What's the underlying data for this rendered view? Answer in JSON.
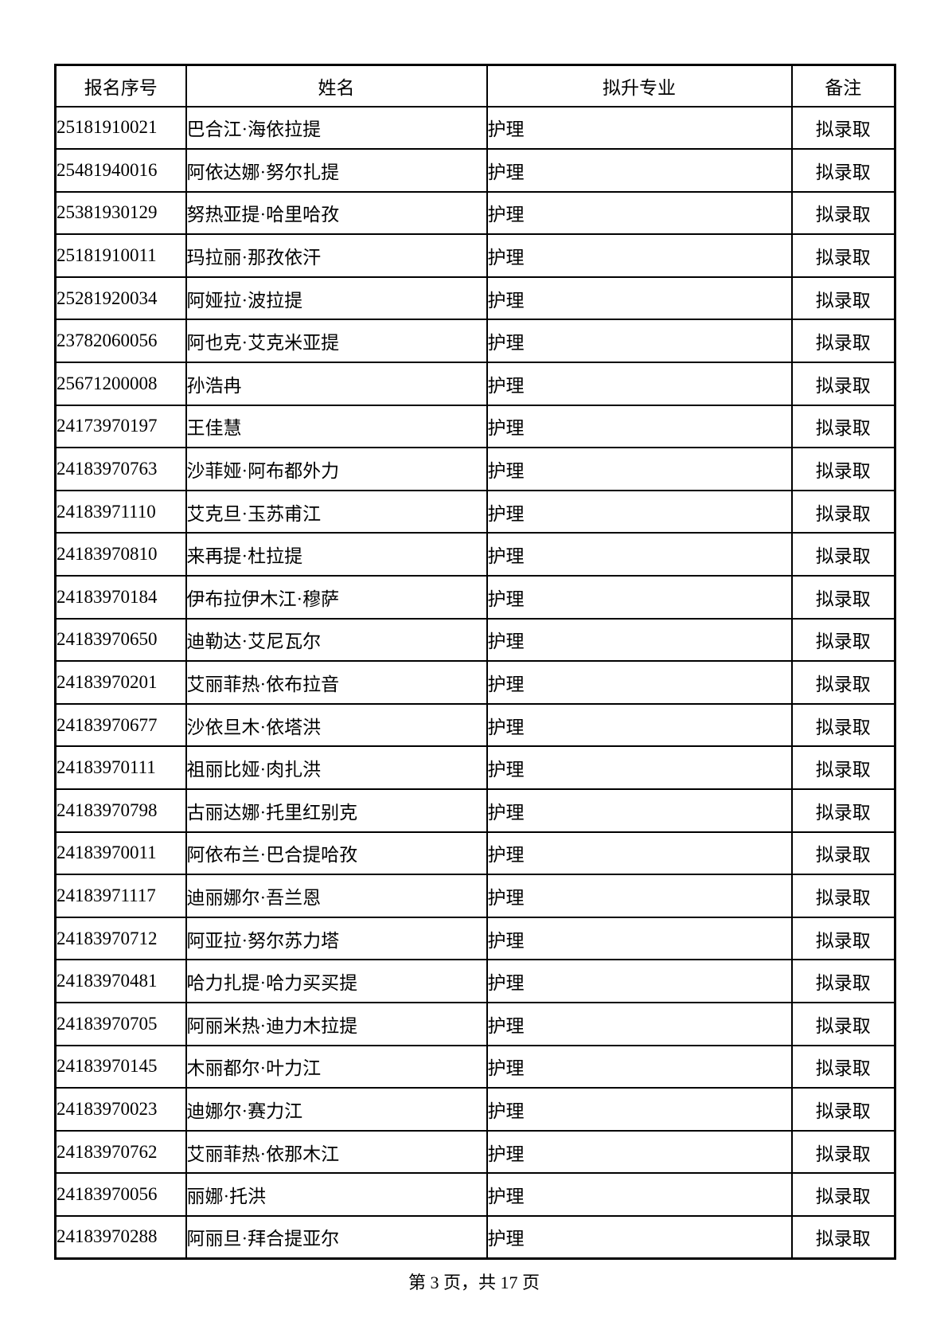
{
  "table": {
    "headers": [
      "报名序号",
      "姓名",
      "拟升专业",
      "备注"
    ],
    "rows": [
      {
        "reg_number": "25181910021",
        "name": "巴合江·海依拉提",
        "major": "护理",
        "note": "拟录取"
      },
      {
        "reg_number": "25481940016",
        "name": "阿依达娜·努尔扎提",
        "major": "护理",
        "note": "拟录取"
      },
      {
        "reg_number": "25381930129",
        "name": "努热亚提·哈里哈孜",
        "major": "护理",
        "note": "拟录取"
      },
      {
        "reg_number": "25181910011",
        "name": "玛拉丽·那孜依汗",
        "major": "护理",
        "note": "拟录取"
      },
      {
        "reg_number": "25281920034",
        "name": "阿娅拉·波拉提",
        "major": "护理",
        "note": "拟录取"
      },
      {
        "reg_number": "23782060056",
        "name": "阿也克·艾克米亚提",
        "major": "护理",
        "note": "拟录取"
      },
      {
        "reg_number": "25671200008",
        "name": "孙浩冉",
        "major": "护理",
        "note": "拟录取"
      },
      {
        "reg_number": "24173970197",
        "name": "王佳慧",
        "major": "护理",
        "note": "拟录取"
      },
      {
        "reg_number": "24183970763",
        "name": "沙菲娅·阿布都外力",
        "major": "护理",
        "note": "拟录取"
      },
      {
        "reg_number": "24183971110",
        "name": "艾克旦·玉苏甫江",
        "major": "护理",
        "note": "拟录取"
      },
      {
        "reg_number": "24183970810",
        "name": "来再提·杜拉提",
        "major": "护理",
        "note": "拟录取"
      },
      {
        "reg_number": "24183970184",
        "name": "伊布拉伊木江·穆萨",
        "major": "护理",
        "note": "拟录取"
      },
      {
        "reg_number": "24183970650",
        "name": "迪勒达·艾尼瓦尔",
        "major": "护理",
        "note": "拟录取"
      },
      {
        "reg_number": "24183970201",
        "name": "艾丽菲热·依布拉音",
        "major": "护理",
        "note": "拟录取"
      },
      {
        "reg_number": "24183970677",
        "name": "沙依旦木·依塔洪",
        "major": "护理",
        "note": "拟录取"
      },
      {
        "reg_number": "24183970111",
        "name": "祖丽比娅·肉扎洪",
        "major": "护理",
        "note": "拟录取"
      },
      {
        "reg_number": "24183970798",
        "name": "古丽达娜·托里红别克",
        "major": "护理",
        "note": "拟录取"
      },
      {
        "reg_number": "24183970011",
        "name": "阿依布兰·巴合提哈孜",
        "major": "护理",
        "note": "拟录取"
      },
      {
        "reg_number": "24183971117",
        "name": "迪丽娜尔·吾兰恩",
        "major": "护理",
        "note": "拟录取"
      },
      {
        "reg_number": "24183970712",
        "name": "阿亚拉·努尔苏力塔",
        "major": "护理",
        "note": "拟录取"
      },
      {
        "reg_number": "24183970481",
        "name": "哈力扎提·哈力买买提",
        "major": "护理",
        "note": "拟录取"
      },
      {
        "reg_number": "24183970705",
        "name": "阿丽米热·迪力木拉提",
        "major": "护理",
        "note": "拟录取"
      },
      {
        "reg_number": "24183970145",
        "name": "木丽都尔·叶力江",
        "major": "护理",
        "note": "拟录取"
      },
      {
        "reg_number": "24183970023",
        "name": "迪娜尔·赛力江",
        "major": "护理",
        "note": "拟录取"
      },
      {
        "reg_number": "24183970762",
        "name": "艾丽菲热·依那木江",
        "major": "护理",
        "note": "拟录取"
      },
      {
        "reg_number": "24183970056",
        "name": "丽娜·托洪",
        "major": "护理",
        "note": "拟录取"
      },
      {
        "reg_number": "24183970288",
        "name": "阿丽旦·拜合提亚尔",
        "major": "护理",
        "note": "拟录取"
      }
    ]
  },
  "footer": {
    "text": "第 3 页，共 17 页"
  },
  "colors": {
    "text": "#000000",
    "border": "#000000",
    "background": "#ffffff"
  }
}
